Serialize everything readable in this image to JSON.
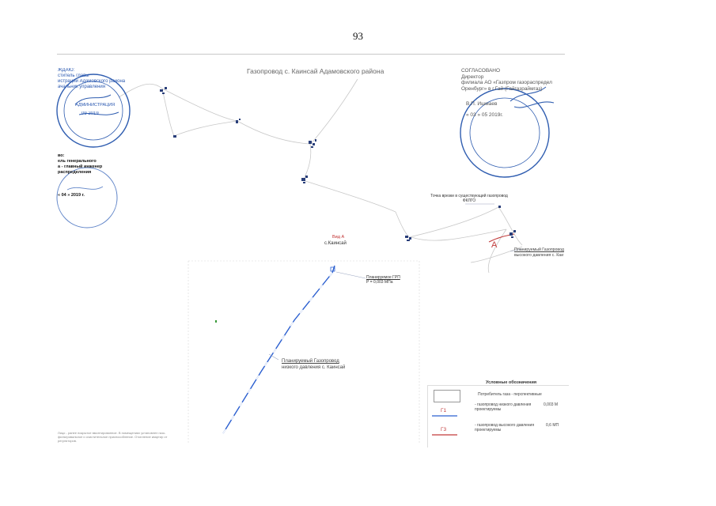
{
  "page_number": "93",
  "map_title": "Газопровод  с. Каинсай Адамовского района",
  "approve_block": {
    "lines": [
      "ЖДАЮ:",
      "ститель главы",
      "истрации Адамовского района",
      "ачальник управления"
    ],
    "stamp_text": "АДМИНИСТРАЦИЯ",
    "date": "09        2019"
  },
  "agreed_block": {
    "title": "СОГЛАСОВАНО",
    "position_line1": "Директор",
    "position_line2": "филиала АО «Газпром газораспредел",
    "position_line3": "Оренбург» в г.Гай (Гайгазраймгаз)",
    "signatory": "В.П. Ишмаев",
    "date": "« 03 »     05          2019г."
  },
  "signoff_block": {
    "lines": [
      "во:",
      "ель генерального",
      "а - главный инженер",
      "распределения"
    ],
    "date": "« 04 »  2019 г."
  },
  "vid_a_label": "Вид А",
  "village_label": "с.Каинсай",
  "point_a_label": "А",
  "tie_in_label": "Точка врезки в существующий газопровод ФКЛГО",
  "grp_label": {
    "line1": "Планируемое ГРП",
    "line2": "Р = 0,003 МПа"
  },
  "low_pressure_label": {
    "line1": "Планируемый  Газопровод",
    "line2": "низкого давления  с. Каинсай"
  },
  "high_pressure_label": {
    "line1": "Планируемый  Газопровод",
    "line2": "высокого давления  с. Каи"
  },
  "legend": {
    "title": "Условные обозначения",
    "items": [
      {
        "symbol": "",
        "text": "Потребитель газа - перспективные",
        "value": ""
      },
      {
        "symbol": "Г1",
        "text": "- газопровод низкого давления проектируемы",
        "value": "0,003 М"
      },
      {
        "symbol": "Г3",
        "text": "- газопровод высокого давления проектируемы",
        "value": "0,6 МП"
      }
    ]
  },
  "bottom_note": "Лицо - ранее покрытое вмонтированное. В помещениях установлен газо-фильтровальное и очистительное приспособление. Отопление квартир от регуляторов.",
  "colors": {
    "low_pressure_pipe": "#2b5fd0",
    "high_pressure_pipe": "#c23b3b",
    "roads": "#c4c4c4",
    "stamp": "#2f5db0",
    "markers": "#2a3f7a"
  }
}
